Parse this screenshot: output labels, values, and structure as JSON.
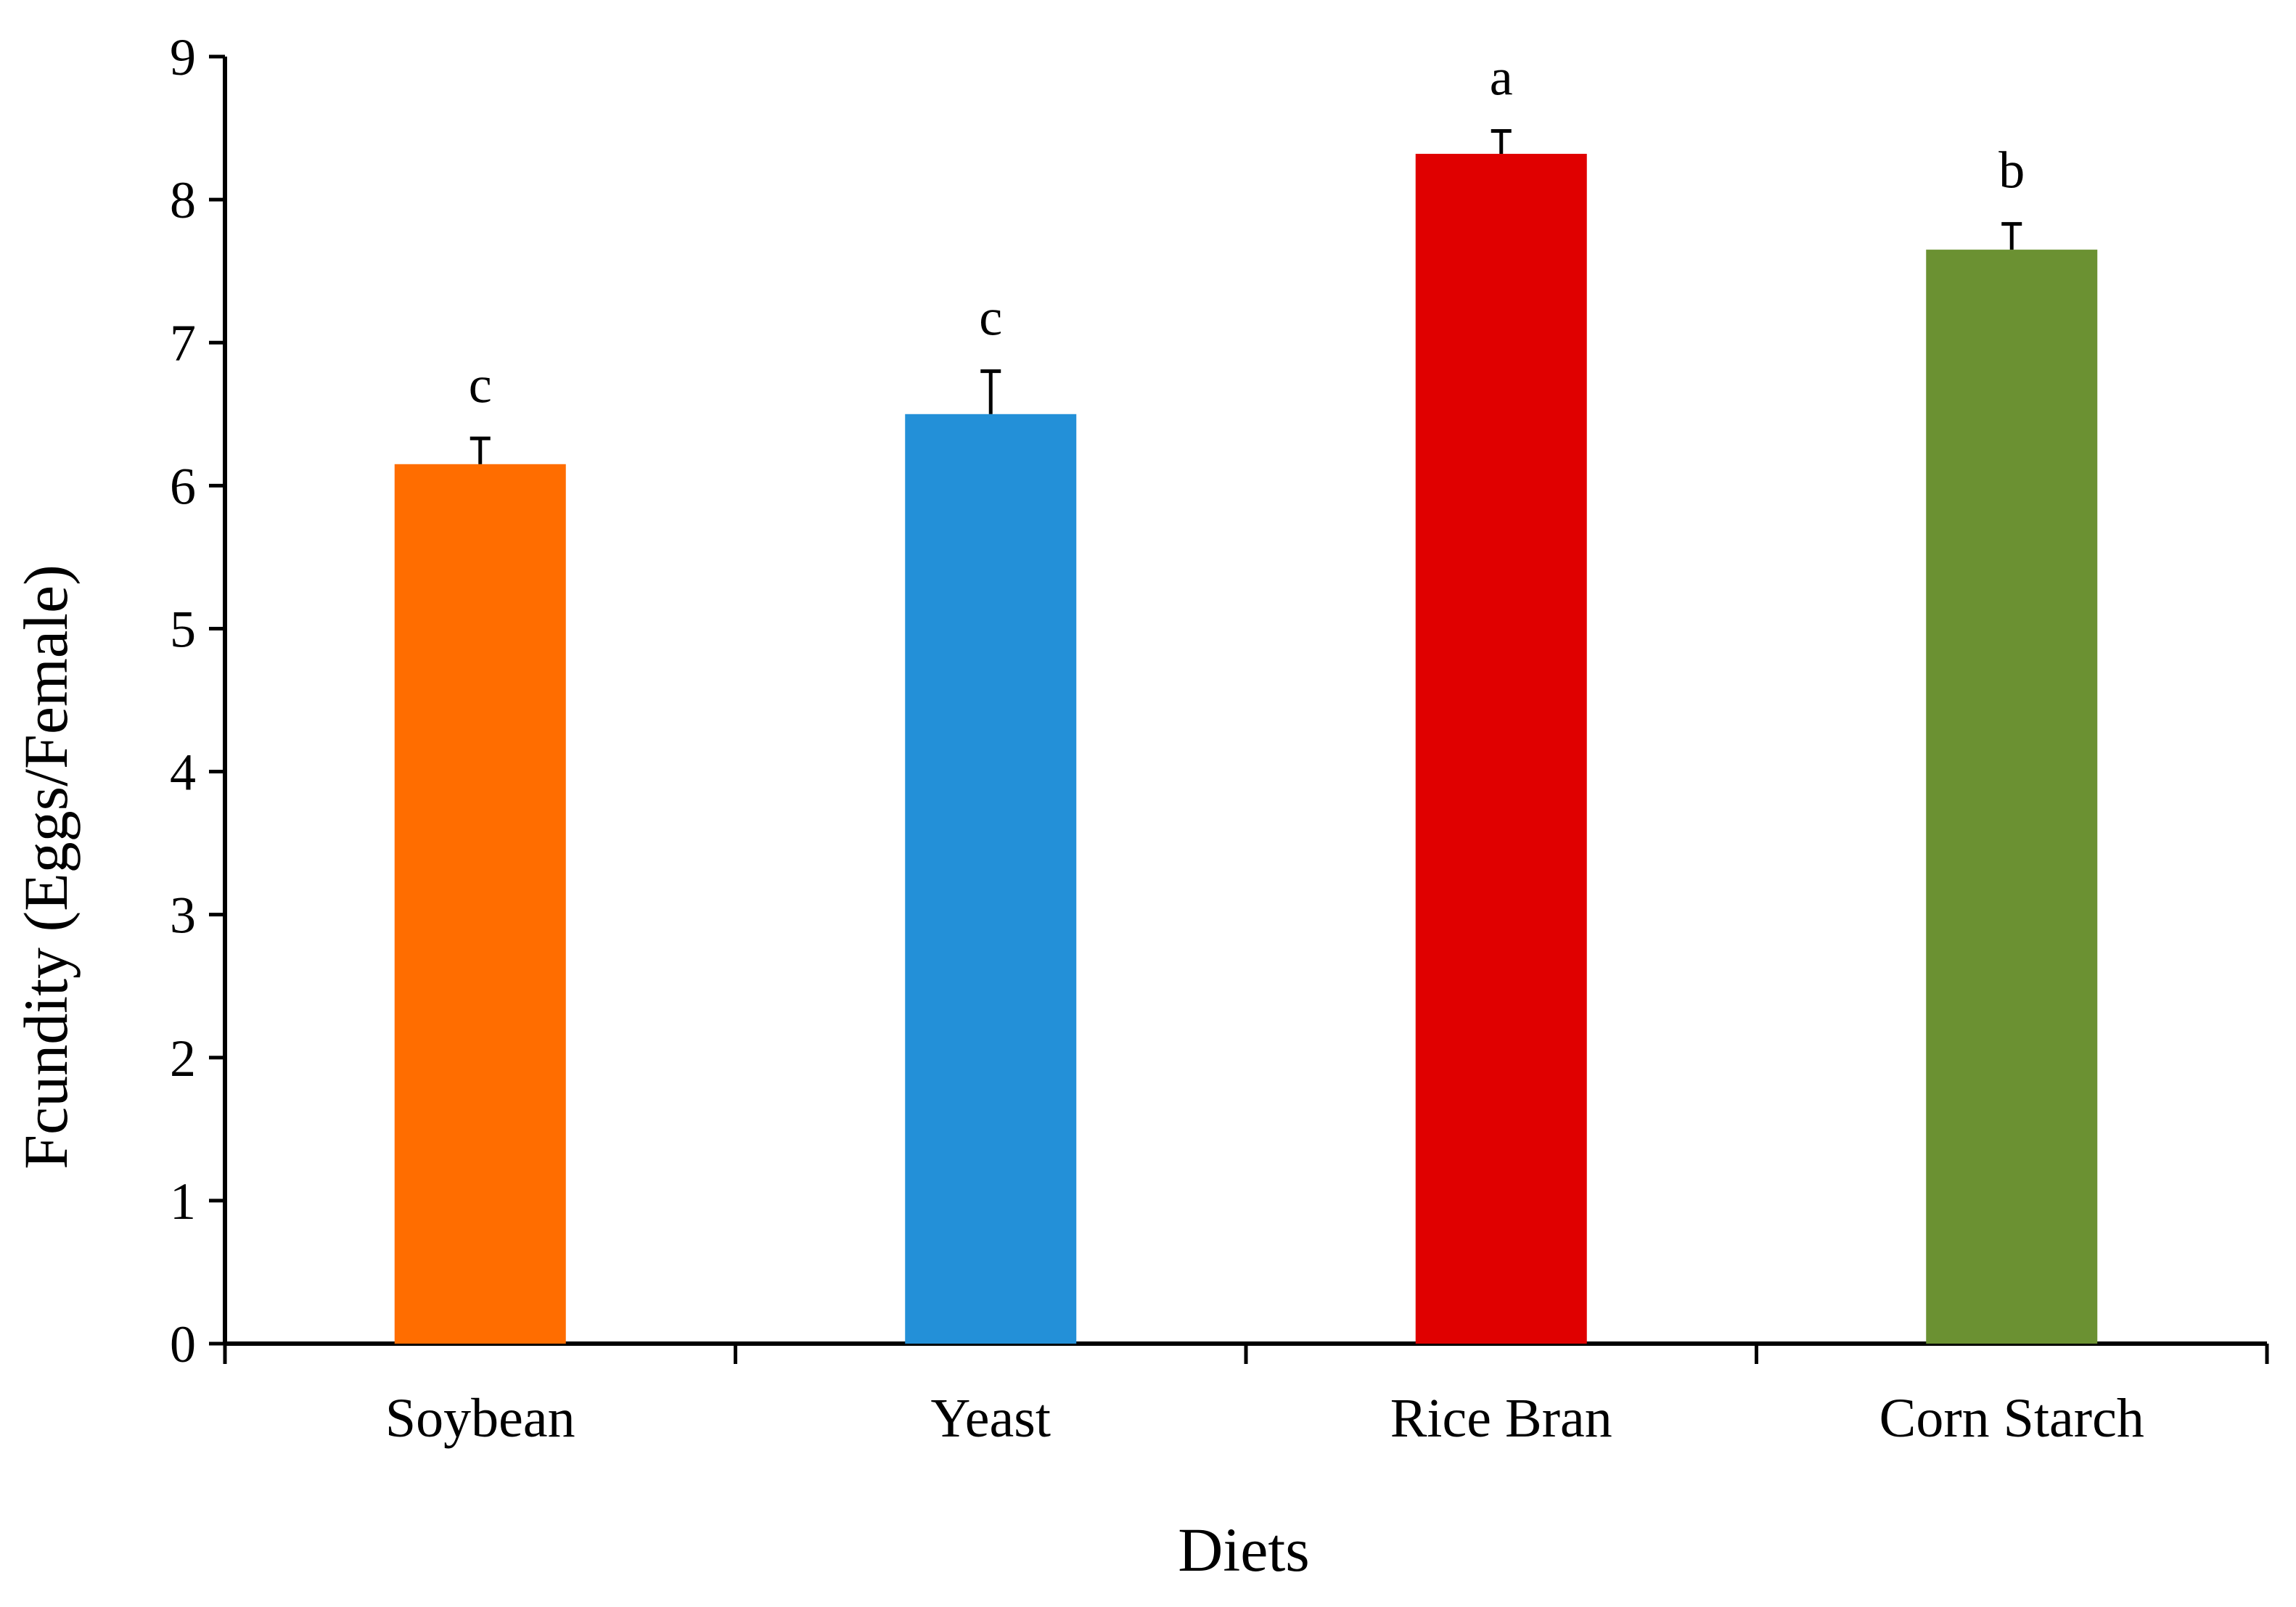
{
  "chart_data": {
    "type": "bar",
    "title": "",
    "xlabel": "Diets",
    "ylabel": "Fcundity (Eggs/Female)",
    "ylim": [
      0,
      9
    ],
    "yticks": [
      0,
      1,
      2,
      3,
      4,
      5,
      6,
      7,
      8,
      9
    ],
    "grid": false,
    "categories": [
      "Soybean",
      "Yeast",
      "Rice Bran",
      "Corn Starch"
    ],
    "values": [
      6.15,
      6.5,
      8.32,
      7.65
    ],
    "errors": [
      0.18,
      0.3,
      0.16,
      0.18
    ],
    "significance_letters": [
      "c",
      "c",
      "a",
      "b"
    ],
    "colors": [
      "#FF6D00",
      "#2390D8",
      "#E00000",
      "#6B9132"
    ]
  }
}
